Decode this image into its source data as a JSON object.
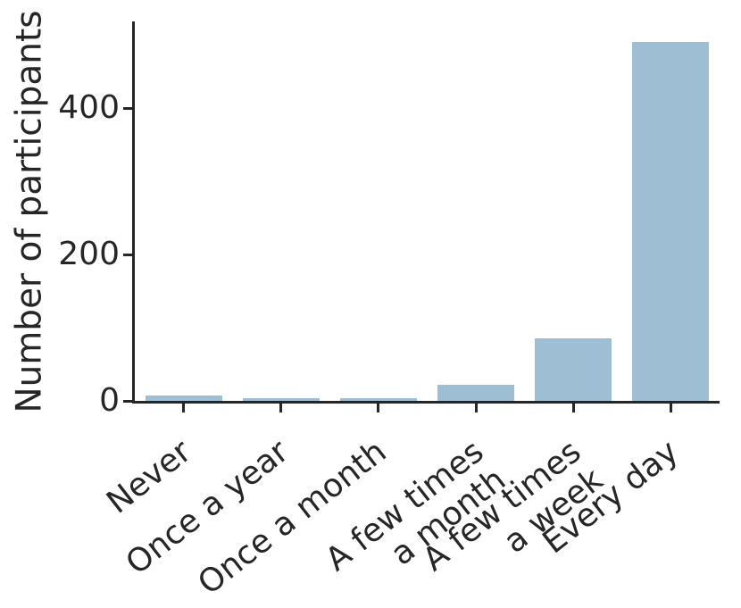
{
  "chart_data": {
    "type": "bar",
    "categories": [
      "Never",
      "Once a year",
      "Once a month",
      "A few times\na month",
      "A few times\na week",
      "Every day"
    ],
    "values": [
      7,
      4,
      4,
      22,
      85,
      490
    ],
    "title": "",
    "xlabel": "",
    "ylabel": "Number of participants",
    "yticks": [
      0,
      200,
      400
    ],
    "ylim": [
      0,
      518
    ],
    "grid": false,
    "legend": null,
    "bar_color": "#9EBED3",
    "axis_color": "#262626",
    "tick_label_rotation_deg": 38
  }
}
